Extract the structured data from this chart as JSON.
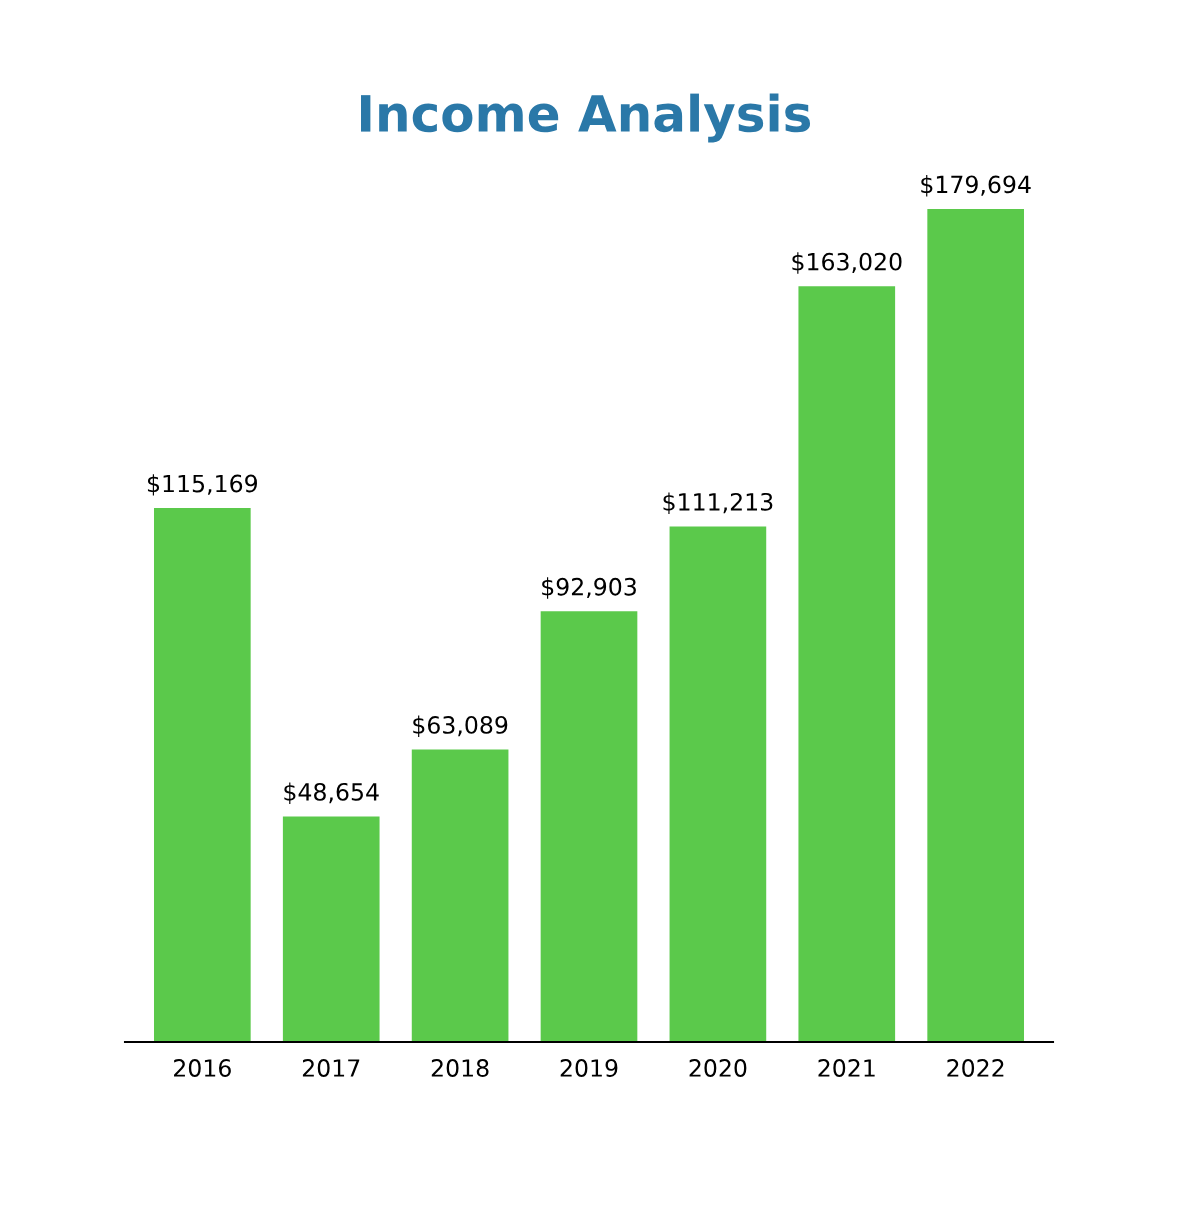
{
  "chart_data": {
    "type": "bar",
    "title": "Income Analysis",
    "categories": [
      "2016",
      "2017",
      "2018",
      "2019",
      "2020",
      "2021",
      "2022"
    ],
    "values": [
      115169,
      48654,
      63089,
      92903,
      111213,
      163020,
      179694
    ],
    "value_labels": [
      "$115,169",
      "$48,654",
      "$63,089",
      "$92,903",
      "$111,213",
      "$163,020",
      "$179,694"
    ],
    "color": "#5bc94b",
    "grid": false,
    "legend": false
  }
}
